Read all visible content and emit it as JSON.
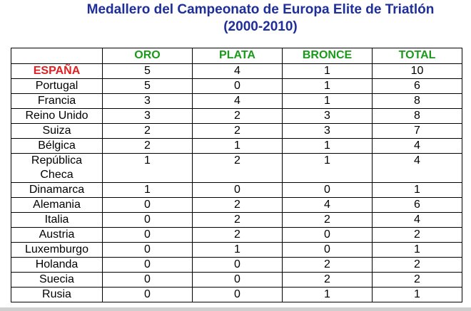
{
  "header": {
    "title_line1": "Medallero del Campeonato de Europa Elite de Triatlón",
    "title_line2": "(2000-2010)"
  },
  "table": {
    "columns": [
      "ORO",
      "PLATA",
      "BRONCE",
      "TOTAL"
    ],
    "rows": [
      [
        "ESPAÑA",
        5,
        4,
        1,
        10
      ],
      [
        "Portugal",
        5,
        0,
        1,
        6
      ],
      [
        "Francia",
        3,
        4,
        1,
        8
      ],
      [
        "Reino Unido",
        3,
        2,
        3,
        8
      ],
      [
        "Suiza",
        2,
        2,
        3,
        7
      ],
      [
        "Bélgica",
        2,
        1,
        1,
        4
      ],
      [
        "República Checa",
        1,
        2,
        1,
        4
      ],
      [
        "Dinamarca",
        1,
        0,
        0,
        1
      ],
      [
        "Alemania",
        0,
        2,
        4,
        6
      ],
      [
        "Italia",
        0,
        2,
        2,
        4
      ],
      [
        "Austria",
        0,
        2,
        0,
        2
      ],
      [
        "Luxemburgo",
        0,
        1,
        0,
        1
      ],
      [
        "Holanda",
        0,
        0,
        2,
        2
      ],
      [
        "Suecia",
        0,
        0,
        2,
        2
      ],
      [
        "Rusia",
        0,
        0,
        1,
        1
      ]
    ]
  }
}
